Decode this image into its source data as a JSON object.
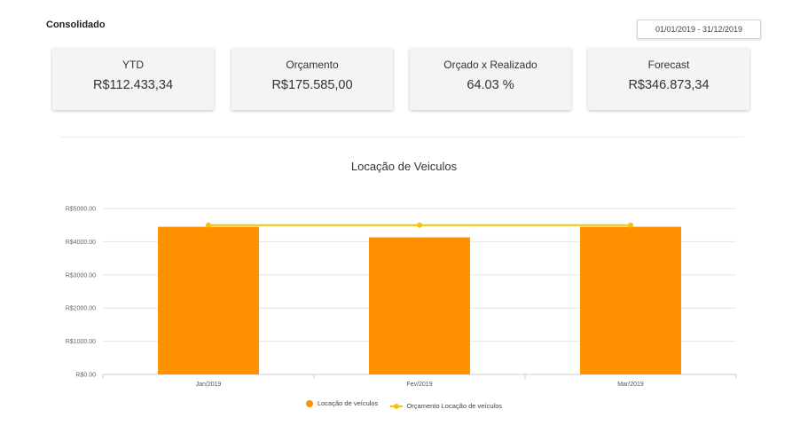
{
  "header": {
    "title": "Consolidado",
    "date_range": "01/01/2019 - 31/12/2019"
  },
  "kpis": [
    {
      "label": "YTD",
      "value": "R$112.433,34"
    },
    {
      "label": "Orçamento",
      "value": "R$175.585,00"
    },
    {
      "label": "Orçado x Realizado",
      "value": "64.03 %"
    },
    {
      "label": "Forecast",
      "value": "R$346.873,34"
    }
  ],
  "colors": {
    "bar": "#ff9100",
    "line": "#f2c500",
    "grid": "#e6e6e6"
  },
  "chart_data": {
    "type": "bar",
    "title": "Locação de Veiculos",
    "categories": [
      "Jan/2019",
      "Fev/2019",
      "Mar/2019"
    ],
    "series": [
      {
        "name": "Locação de veículos",
        "type": "bar",
        "values": [
          4450,
          4130,
          4450
        ]
      },
      {
        "name": "Orçamento Locação de veículos",
        "type": "line",
        "values": [
          4500,
          4500,
          4500
        ]
      }
    ],
    "ylim": [
      0,
      5000
    ],
    "yticks": [
      "R$0.00",
      "R$1000.00",
      "R$2000.00",
      "R$3000.00",
      "R$4000.00",
      "R$5000.00"
    ],
    "grid": true,
    "legend_position": "bottom"
  }
}
